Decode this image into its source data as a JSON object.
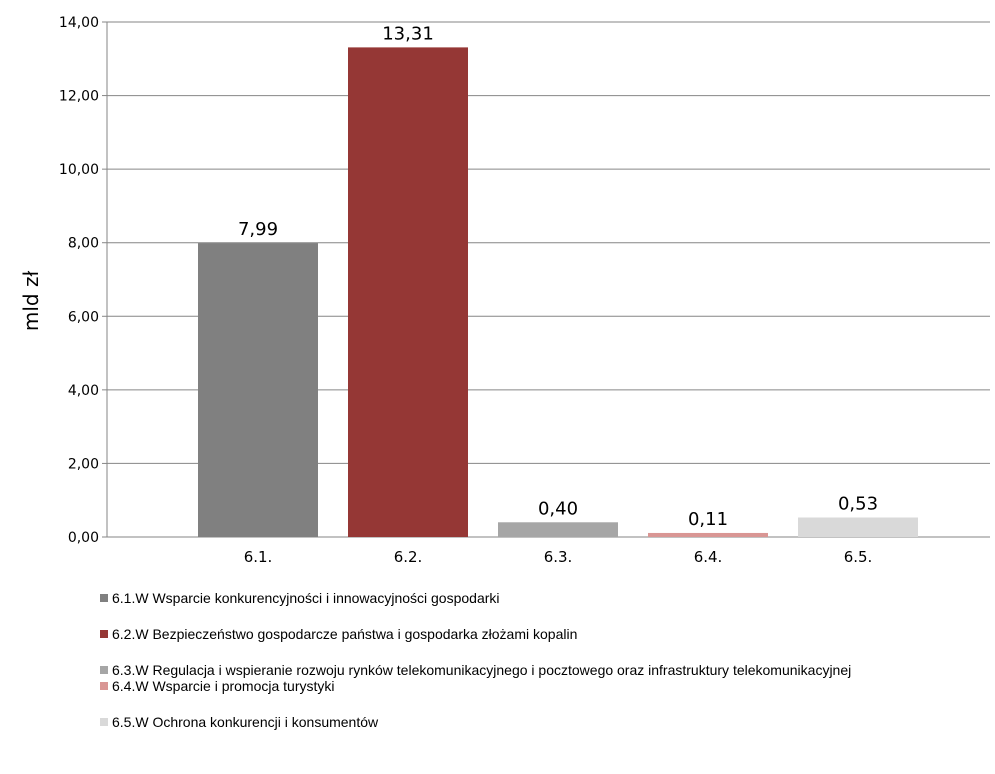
{
  "chart_data": {
    "type": "bar",
    "categories": [
      "6.1.",
      "6.2.",
      "6.3.",
      "6.4.",
      "6.5."
    ],
    "values": [
      7.99,
      13.31,
      0.4,
      0.11,
      0.53
    ],
    "value_labels": [
      "7,99",
      "13,31",
      "0,40",
      "0,11",
      "0,53"
    ],
    "colors": [
      "#808080",
      "#953735",
      "#a6a6a6",
      "#d99694",
      "#d9d9d9"
    ],
    "ylabel": "mld zł",
    "ylim": [
      0,
      14
    ],
    "yticks": [
      0,
      2,
      4,
      6,
      8,
      10,
      12,
      14
    ],
    "ytick_labels": [
      "0,00",
      "2,00",
      "4,00",
      "6,00",
      "8,00",
      "10,00",
      "12,00",
      "14,00"
    ],
    "grid": true,
    "legend_position": "bottom",
    "legend": [
      "6.1.W Wsparcie konkurencyjności i innowacyjności gospodarki",
      "6.2.W Bezpieczeństwo gospodarcze państwa i gospodarka złożami kopalin",
      "6.3.W Regulacja i wspieranie rozwoju rynków telekomunikacyjnego i pocztowego oraz infrastruktury telekomunikacyjnej",
      "6.4.W Wsparcie i promocja turystyki",
      "6.5.W Ochrona konkurencji i konsumentów"
    ]
  }
}
